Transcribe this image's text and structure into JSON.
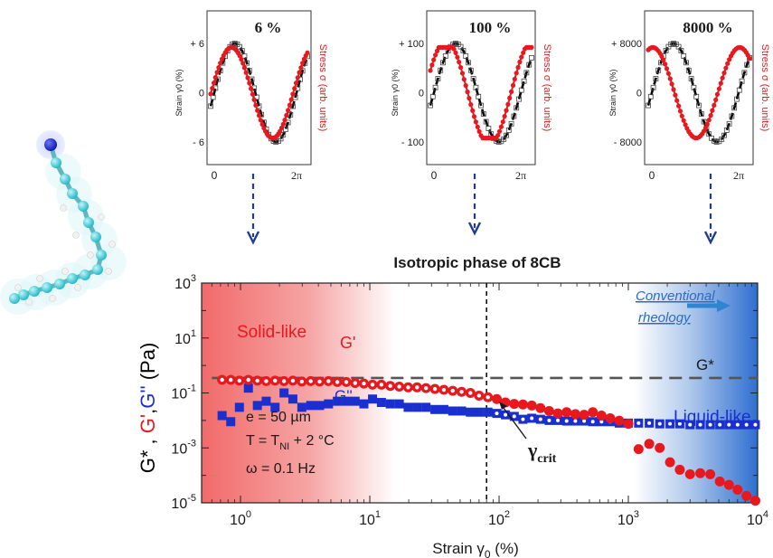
{
  "chart_data": [
    {
      "type": "line",
      "panel": "inset-1",
      "label": "6 %",
      "ytick_labels": [
        "+ 6",
        "0",
        "- 6"
      ],
      "xtick_labels": [
        "0",
        "2π"
      ],
      "ylabel": "Strain γ0 (%)",
      "ylabel2": "Stress σ (arb. units)",
      "strain_amplitude_pct": 6,
      "stress_phase_shift": 0.25,
      "stress_shape": "sinusoidal",
      "colors": {
        "strain": "#000000",
        "stress": "#e8191e"
      }
    },
    {
      "type": "line",
      "panel": "inset-2",
      "label": "100 %",
      "ytick_labels": [
        "+ 100",
        "0",
        "- 100"
      ],
      "xtick_labels": [
        "0",
        "2π"
      ],
      "ylabel": "Strain γ0 (%)",
      "ylabel2": "Stress σ (arb. units)",
      "strain_amplitude_pct": 100,
      "stress_phase_shift": 0.7,
      "stress_shape": "slightly-distorted",
      "colors": {
        "strain": "#000000",
        "stress": "#e8191e"
      }
    },
    {
      "type": "line",
      "panel": "inset-3",
      "label": "8000 %",
      "ytick_labels": [
        "+ 8000",
        "0",
        "- 8000"
      ],
      "xtick_labels": [
        "0",
        "2π"
      ],
      "ylabel": "Strain γ0 (%)",
      "ylabel2": "Stress σ (arb. units)",
      "strain_amplitude_pct": 8000,
      "stress_phase_shift": 1.5,
      "stress_shape": "sinusoidal",
      "colors": {
        "strain": "#000000",
        "stress": "#e8191e"
      }
    },
    {
      "type": "scatter",
      "panel": "main",
      "title": "Isotropic phase of 8CB",
      "xlabel": "Strain γ0 (%)",
      "ylabel": "G*, G', G'' (Pa)",
      "x_scale": "log",
      "y_scale": "log",
      "xlim": [
        0.5,
        10000
      ],
      "ylim": [
        1e-05,
        1000
      ],
      "xtick_labels": [
        "10^0",
        "10^1",
        "10^2",
        "10^3",
        "10^4"
      ],
      "ytick_labels": [
        "10^3",
        "10^1",
        "10^-1",
        "10^-3",
        "10^-5"
      ],
      "gamma_crit": 80,
      "series": [
        {
          "name": "G*",
          "style": "dashed-line",
          "color": "#555555",
          "x": [
            0.6,
            10000
          ],
          "y": [
            0.35,
            0.35
          ]
        },
        {
          "name": "G'",
          "color": "#e8191e",
          "x": [
            0.72,
            0.84,
            0.98,
            1.15,
            1.35,
            1.58,
            1.85,
            2.17,
            2.54,
            2.98,
            3.49,
            4.09,
            4.79,
            5.61,
            6.58,
            7.7,
            9.0,
            10.5,
            12.3,
            14.4,
            16.9,
            19.8,
            23.2,
            27.2,
            31.9,
            37.4,
            43.8,
            51.3,
            60,
            70,
            82,
            96,
            112,
            131,
            153,
            179,
            209,
            244,
            285,
            333,
            389,
            455,
            531,
            620,
            724,
            850,
            1000,
            1200,
            1450,
            1750,
            2100,
            2500,
            3000,
            3600,
            4300,
            5100,
            6000,
            7000,
            8200,
            9600
          ],
          "y": [
            0.3,
            0.3,
            0.28,
            0.3,
            0.28,
            0.27,
            0.28,
            0.27,
            0.28,
            0.26,
            0.27,
            0.26,
            0.27,
            0.25,
            0.25,
            0.23,
            0.22,
            0.2,
            0.2,
            0.18,
            0.17,
            0.16,
            0.16,
            0.15,
            0.14,
            0.13,
            0.12,
            0.11,
            0.1,
            0.08,
            0.07,
            0.06,
            0.045,
            0.04,
            0.038,
            0.035,
            0.028,
            0.022,
            0.018,
            0.02,
            0.017,
            0.016,
            0.02,
            0.015,
            0.012,
            0.0098,
            0.0075,
            0.0009,
            0.0014,
            0.001,
            0.0003,
            0.00016,
            0.00011,
            0.00012,
            0.00011,
            6e-05,
            4.5e-05,
            3e-05,
            1.8e-05,
            1.2e-05
          ]
        },
        {
          "name": "G''",
          "color": "#1a2fd0",
          "x": [
            0.72,
            0.84,
            0.98,
            1.15,
            1.35,
            1.58,
            1.85,
            2.17,
            2.54,
            2.98,
            3.49,
            4.09,
            4.79,
            5.61,
            6.58,
            7.7,
            9.0,
            10.5,
            12.3,
            14.4,
            16.9,
            19.8,
            23.2,
            27.2,
            31.9,
            37.4,
            43.8,
            51.3,
            60,
            70,
            82,
            96,
            112,
            131,
            153,
            179,
            209,
            244,
            285,
            333,
            389,
            455,
            531,
            620,
            724,
            850,
            1000,
            1200,
            1450,
            1750,
            2100,
            2500,
            3000,
            3600,
            4300,
            5100,
            6000,
            7000,
            8200,
            9600
          ],
          "y": [
            0.015,
            0.009,
            0.03,
            0.15,
            0.035,
            0.05,
            0.03,
            0.1,
            0.06,
            0.03,
            0.035,
            0.035,
            0.04,
            0.05,
            0.05,
            0.05,
            0.04,
            0.06,
            0.045,
            0.04,
            0.04,
            0.03,
            0.03,
            0.03,
            0.025,
            0.025,
            0.022,
            0.022,
            0.02,
            0.02,
            0.02,
            0.018,
            0.016,
            0.014,
            0.011,
            0.012,
            0.011,
            0.01,
            0.01,
            0.0095,
            0.0095,
            0.0095,
            0.009,
            0.009,
            0.009,
            0.008,
            0.008,
            0.008,
            0.008,
            0.0075,
            0.0075,
            0.0075,
            0.007,
            0.007,
            0.007,
            0.007,
            0.007,
            0.007,
            0.007,
            0.007
          ]
        }
      ],
      "annotations": {
        "solid_like": "Solid-like",
        "liquid_like": "Liquid-like",
        "g_prime": "G'",
        "g_double_prime": "G''",
        "g_star": "G*",
        "conventional_1": "Conventional",
        "conventional_2": "rheology",
        "gamma_crit": "γ",
        "gamma_crit_sub": "crit",
        "params_e": "e = 50 µm",
        "params_T_a": "T = T",
        "params_T_sub": "NI",
        "params_T_b": " + 2 °C",
        "params_w": "ω = 0.1 Hz"
      },
      "colors": {
        "solid_region": "#f06a6a",
        "liquid_region": "#2f6fd0",
        "conventional_text": "#2e6bbf",
        "arrow": "#2e86d0",
        "dashed_gamma": "#000000"
      }
    }
  ],
  "labels": {
    "title": "Isotropic phase of 8CB",
    "xlabel_main": "Strain γ",
    "xlabel_sub": "0",
    "xlabel_unit": " (%)",
    "ylabel_g": "G*",
    "ylabel_gp": "G'",
    "ylabel_gpp": "G''",
    "ylabel_unit": "(Pa)",
    "sep": " , ",
    "sep2": ","
  }
}
